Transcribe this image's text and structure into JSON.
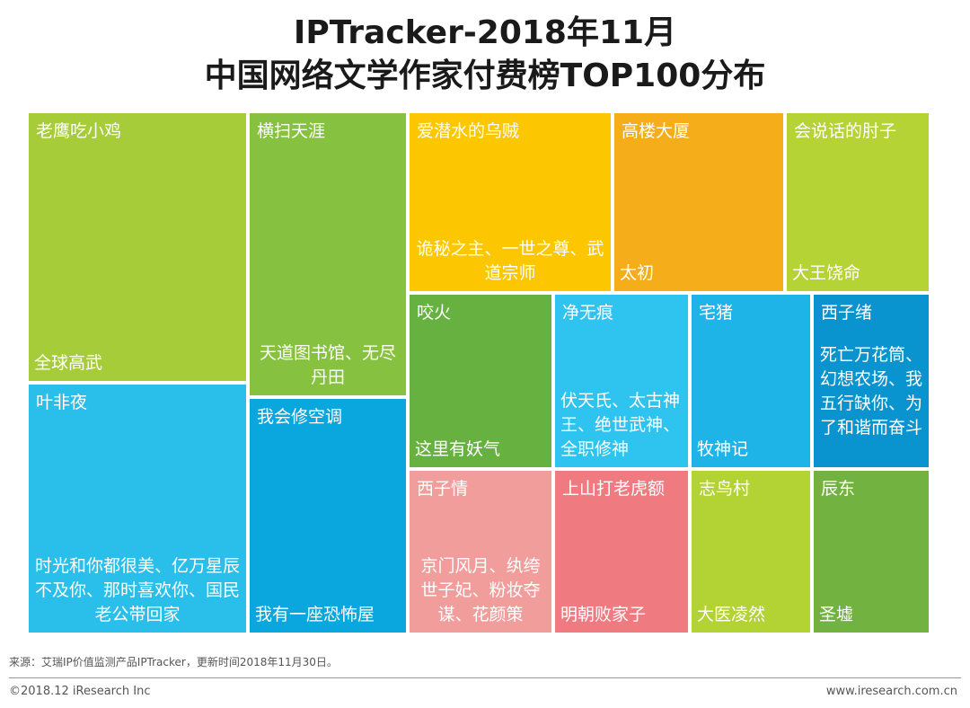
{
  "chart_data": {
    "type": "treemap",
    "title": "IPTracker-2018年11月",
    "subtitle": "中国网络文学作家付费榜TOP100分布",
    "items": [
      {
        "author": "老鹰吃小鸡",
        "works": "全球高武",
        "color": "#a6cc39"
      },
      {
        "author": "叶非夜",
        "works": "时光和你都很美、亿万星辰不及你、那时喜欢你、国民老公带回家",
        "color": "#29bfea"
      },
      {
        "author": "横扫天涯",
        "works": "天道图书馆、无尽丹田",
        "color": "#86c23f"
      },
      {
        "author": "我会修空调",
        "works": "我有一座恐怖屋",
        "color": "#0aa6de"
      },
      {
        "author": "爱潜水的乌贼",
        "works": "诡秘之主、一世之尊、武道宗师",
        "color": "#fdc700"
      },
      {
        "author": "高楼大厦",
        "works": "太初",
        "color": "#f6ad1a"
      },
      {
        "author": "会说话的肘子",
        "works": "大王饶命",
        "color": "#b5d334"
      },
      {
        "author": "咬火",
        "works": "这里有妖气",
        "color": "#67b140"
      },
      {
        "author": "净无痕",
        "works": "伏天氏、太古神王、绝世武神、全职修神",
        "color": "#2fc4f0"
      },
      {
        "author": "宅猪",
        "works": "牧神记",
        "color": "#1fb4e8"
      },
      {
        "author": "西子绪",
        "works": "死亡万花筒、幻想农场、我五行缺你、为了和谐而奋斗",
        "color": "#0a94cf"
      },
      {
        "author": "西子情",
        "works": "京门风月、纨绔世子妃、粉妆夺谋、花颜策",
        "color": "#f09d9b"
      },
      {
        "author": "上山打老虎额",
        "works": "明朝败家子",
        "color": "#ef7a80"
      },
      {
        "author": "志鸟村",
        "works": "大医凌然",
        "color": "#b3d234"
      },
      {
        "author": "辰东",
        "works": "圣墟",
        "color": "#72b240"
      }
    ]
  },
  "source": "来源：艾瑞IP价值监测产品IPTracker，更新时间2018年11月30日。",
  "footer": {
    "copyright": "©2018.12 iResearch Inc",
    "website": "www.iresearch.com.cn"
  }
}
